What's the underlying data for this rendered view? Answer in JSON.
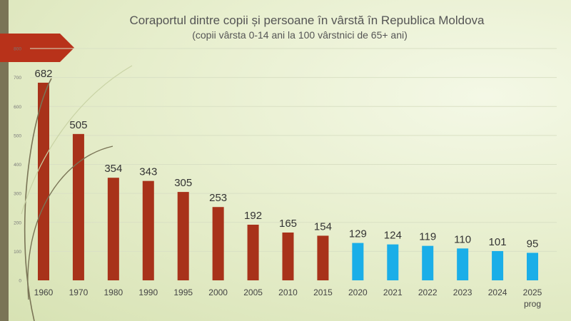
{
  "chart_data": {
    "type": "bar",
    "title": "Coraportul dintre copii și persoane în vârstă în Republica Moldova",
    "subtitle": "(copii vârsta 0-14 ani la 100 vârstnici de 65+ ani)",
    "categories": [
      "1960",
      "1970",
      "1980",
      "1990",
      "1995",
      "2000",
      "2005",
      "2010",
      "2015",
      "2020",
      "2021",
      "2022",
      "2023",
      "2024",
      "2025\nprog"
    ],
    "values": [
      682,
      505,
      354,
      343,
      305,
      253,
      192,
      165,
      154,
      129,
      124,
      119,
      110,
      101,
      95
    ],
    "colors": [
      "#a8321a",
      "#a8321a",
      "#a8321a",
      "#a8321a",
      "#a8321a",
      "#a8321a",
      "#a8321a",
      "#a8321a",
      "#a8321a",
      "#1aaee8",
      "#1aaee8",
      "#1aaee8",
      "#1aaee8",
      "#1aaee8",
      "#1aaee8"
    ],
    "yticks": [
      0,
      100,
      200,
      300,
      400,
      500,
      600,
      700,
      800
    ],
    "ylim": [
      0,
      800
    ],
    "grid": true,
    "legend": "none"
  },
  "colors": {
    "historical": "#a8321a",
    "recent": "#1aaee8",
    "accent": "#b8321a",
    "sidebar": "#7a7456"
  }
}
